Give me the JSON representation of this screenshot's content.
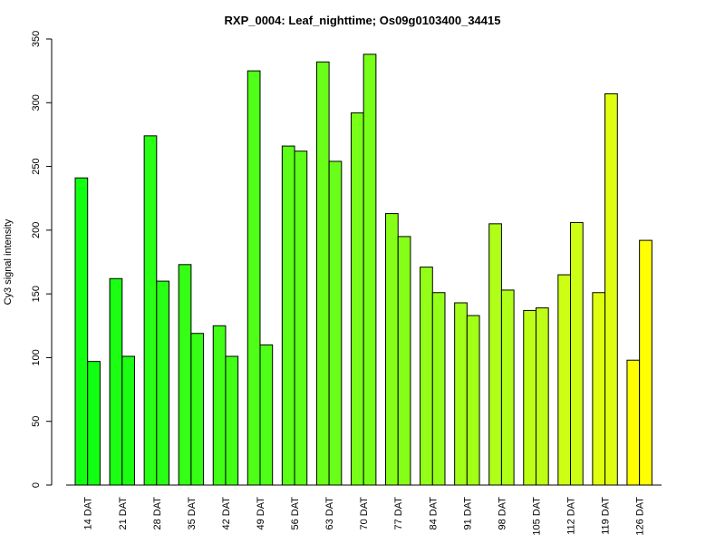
{
  "chart_data": {
    "type": "bar",
    "title": "RXP_0004: Leaf_nighttime; Os09g0103400_34415",
    "xlabel": "",
    "ylabel": "Cy3 signal intensity",
    "ylim": [
      0,
      350
    ],
    "yticks": [
      0,
      50,
      100,
      150,
      200,
      250,
      300,
      350
    ],
    "categories": [
      "14 DAT",
      "21 DAT",
      "28 DAT",
      "35 DAT",
      "42 DAT",
      "49 DAT",
      "56 DAT",
      "63 DAT",
      "70 DAT",
      "77 DAT",
      "84 DAT",
      "91 DAT",
      "98 DAT",
      "105 DAT",
      "112 DAT",
      "119 DAT",
      "126 DAT"
    ],
    "series": [
      {
        "values": [
          241,
          162,
          274,
          173,
          125,
          325,
          266,
          332,
          292,
          213,
          171,
          143,
          205,
          137,
          165,
          151,
          98
        ]
      },
      {
        "values": [
          97,
          101,
          160,
          119,
          101,
          110,
          262,
          254,
          338,
          195,
          151,
          133,
          153,
          139,
          206,
          307,
          192
        ]
      }
    ],
    "colors": [
      "#00ff1a",
      "#1aff19",
      "#33ff19",
      "#4cff19",
      "#66ff19",
      "#80ff19",
      "#99ff19",
      "#b3ff19",
      "#ccff19",
      "#e6ff19",
      "#ffff00"
    ],
    "group_colors": [
      "#11ff11",
      "#1bff13",
      "#28ff14",
      "#35ff15",
      "#42ff16",
      "#50ff17",
      "#5dff17",
      "#6aff18",
      "#78ff18",
      "#86ff18",
      "#94ff18",
      "#a2ff18",
      "#b0ff18",
      "#beff16",
      "#ccff14",
      "#e0ff10",
      "#ffff00"
    ],
    "grid": false,
    "legend": "none"
  }
}
